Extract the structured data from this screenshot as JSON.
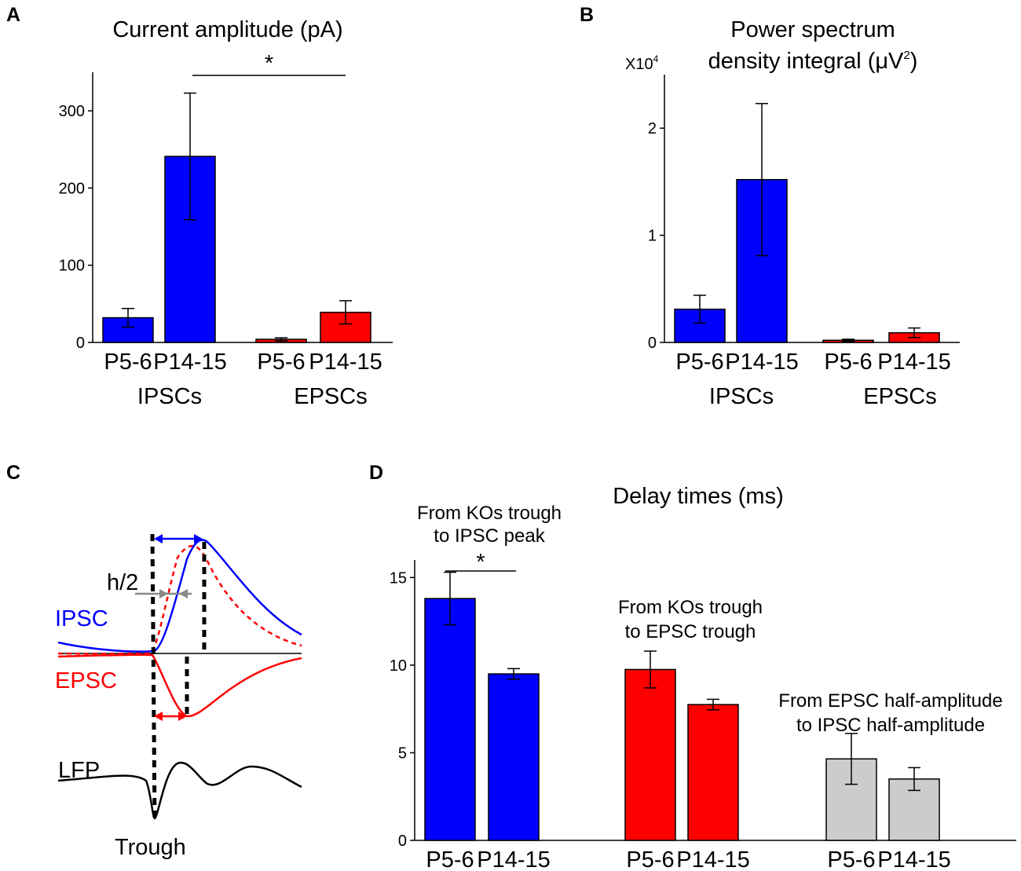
{
  "colors": {
    "blue": "#0000ff",
    "red": "#ff0000",
    "gray": "#cccccc",
    "black": "#000000",
    "arrow_gray": "#888888"
  },
  "chart_data": [
    {
      "panel": "A",
      "type": "bar",
      "title": "Current amplitude (pA)",
      "categories": [
        "P5-6",
        "P14-15",
        "P5-6",
        "P14-15"
      ],
      "groups": [
        "IPSCs",
        "EPSCs"
      ],
      "values": [
        32,
        241,
        4,
        39
      ],
      "errors": [
        12,
        82,
        2,
        15
      ],
      "bar_colors": [
        "blue",
        "blue",
        "red",
        "red"
      ],
      "ylim": [
        0,
        350
      ],
      "yticks": [
        0,
        100,
        200,
        300
      ],
      "ytick_labels": [
        "0",
        "100",
        "200",
        "300"
      ],
      "significance": {
        "label": "*",
        "between": [
          1,
          3
        ]
      }
    },
    {
      "panel": "B",
      "type": "bar",
      "title": "Power spectrum density integral (μV²)",
      "title_lines": [
        "Power spectrum",
        "density integral (μV",
        "2",
        ")"
      ],
      "multiplier": "X10",
      "multiplier_exp": "4",
      "categories": [
        "P5-6",
        "P14-15",
        "P5-6",
        "P14-15"
      ],
      "groups": [
        "IPSCs",
        "EPSCs"
      ],
      "values": [
        0.31,
        1.52,
        0.02,
        0.09
      ],
      "errors": [
        0.13,
        0.71,
        0.01,
        0.045
      ],
      "bar_colors": [
        "blue",
        "blue",
        "red",
        "red"
      ],
      "ylim": [
        0,
        2.5
      ],
      "yticks": [
        0,
        1,
        2
      ],
      "ytick_labels": [
        "0",
        "1",
        "2"
      ]
    },
    {
      "panel": "D",
      "type": "bar",
      "title": "Delay times (ms)",
      "categories": [
        "P5-6",
        "P14-15",
        "P5-6",
        "P14-15",
        "P5-6",
        "P14-15"
      ],
      "values": [
        13.8,
        9.5,
        9.75,
        7.75,
        4.65,
        3.5
      ],
      "errors": [
        1.5,
        0.3,
        1.05,
        0.3,
        1.45,
        0.65
      ],
      "bar_colors": [
        "blue",
        "blue",
        "red",
        "red",
        "gray",
        "gray"
      ],
      "group_annotations": [
        [
          "From KOs trough",
          "to IPSC peak"
        ],
        [
          "From KOs trough",
          "to EPSC trough"
        ],
        [
          "From EPSC half-amplitude",
          "to IPSC half-amplitude"
        ]
      ],
      "ylim": [
        0,
        16
      ],
      "yticks": [
        0,
        5,
        10,
        15
      ],
      "ytick_labels": [
        "0",
        "5",
        "10",
        "15"
      ],
      "significance": {
        "label": "*",
        "between": [
          0,
          1
        ]
      }
    }
  ],
  "schematic": {
    "panel": "C",
    "labels": {
      "h2": "h/2",
      "ipsc": "IPSC",
      "epsc": "EPSC",
      "lfp": "LFP",
      "trough": "Trough"
    }
  }
}
